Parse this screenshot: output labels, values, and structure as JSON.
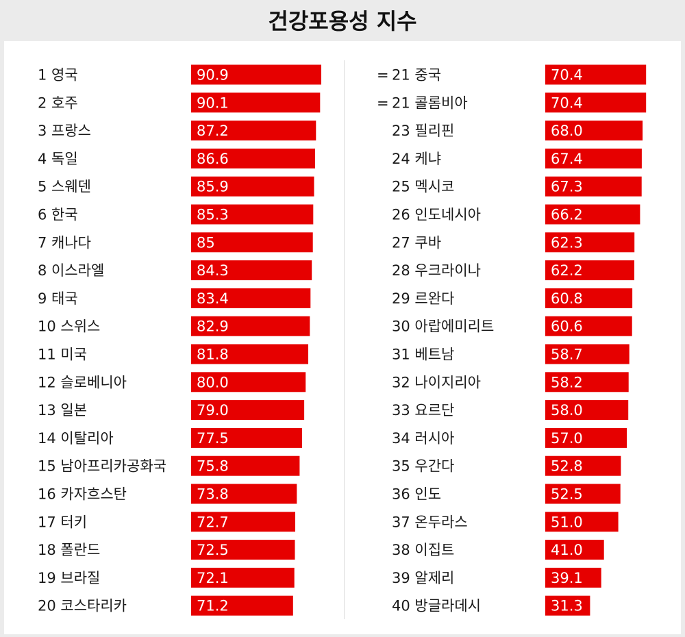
{
  "title": "건강포용성 지수",
  "colors": {
    "bar": "#e60000",
    "background": "#ebebeb",
    "panel": "#ffffff"
  },
  "chart_data": {
    "type": "bar",
    "title": "건강포용성 지수",
    "orientation": "horizontal",
    "grid": false,
    "legend": "none",
    "xlim": [
      0,
      90.9
    ],
    "rows": [
      {
        "rank": "1",
        "tie": "",
        "country": "영국",
        "value": 90.9,
        "label": "90.9"
      },
      {
        "rank": "2",
        "tie": "",
        "country": "호주",
        "value": 90.1,
        "label": "90.1"
      },
      {
        "rank": "3",
        "tie": "",
        "country": "프랑스",
        "value": 87.2,
        "label": "87.2"
      },
      {
        "rank": "4",
        "tie": "",
        "country": "독일",
        "value": 86.6,
        "label": "86.6"
      },
      {
        "rank": "5",
        "tie": "",
        "country": "스웨덴",
        "value": 85.9,
        "label": "85.9"
      },
      {
        "rank": "6",
        "tie": "",
        "country": "한국",
        "value": 85.3,
        "label": "85.3"
      },
      {
        "rank": "7",
        "tie": "",
        "country": "캐나다",
        "value": 85.0,
        "label": "85"
      },
      {
        "rank": "8",
        "tie": "",
        "country": "이스라엘",
        "value": 84.3,
        "label": "84.3"
      },
      {
        "rank": "9",
        "tie": "",
        "country": "태국",
        "value": 83.4,
        "label": "83.4"
      },
      {
        "rank": "10",
        "tie": "",
        "country": "스위스",
        "value": 82.9,
        "label": "82.9"
      },
      {
        "rank": "11",
        "tie": "",
        "country": "미국",
        "value": 81.8,
        "label": "81.8"
      },
      {
        "rank": "12",
        "tie": "",
        "country": "슬로베니아",
        "value": 80.0,
        "label": "80.0"
      },
      {
        "rank": "13",
        "tie": "",
        "country": "일본",
        "value": 79.0,
        "label": "79.0"
      },
      {
        "rank": "14",
        "tie": "",
        "country": "이탈리아",
        "value": 77.5,
        "label": "77.5"
      },
      {
        "rank": "15",
        "tie": "",
        "country": "남아프리카공화국",
        "value": 75.8,
        "label": "75.8"
      },
      {
        "rank": "16",
        "tie": "",
        "country": "카자흐스탄",
        "value": 73.8,
        "label": "73.8"
      },
      {
        "rank": "17",
        "tie": "",
        "country": "터키",
        "value": 72.7,
        "label": "72.7"
      },
      {
        "rank": "18",
        "tie": "",
        "country": "폴란드",
        "value": 72.5,
        "label": "72.5"
      },
      {
        "rank": "19",
        "tie": "",
        "country": "브라질",
        "value": 72.1,
        "label": "72.1"
      },
      {
        "rank": "20",
        "tie": "",
        "country": "코스타리카",
        "value": 71.2,
        "label": "71.2"
      },
      {
        "rank": "21",
        "tie": "=",
        "country": "중국",
        "value": 70.4,
        "label": "70.4"
      },
      {
        "rank": "21",
        "tie": "=",
        "country": "콜롬비아",
        "value": 70.4,
        "label": "70.4"
      },
      {
        "rank": "23",
        "tie": "",
        "country": "필리핀",
        "value": 68.0,
        "label": "68.0"
      },
      {
        "rank": "24",
        "tie": "",
        "country": "케냐",
        "value": 67.4,
        "label": "67.4"
      },
      {
        "rank": "25",
        "tie": "",
        "country": "멕시코",
        "value": 67.3,
        "label": "67.3"
      },
      {
        "rank": "26",
        "tie": "",
        "country": "인도네시아",
        "value": 66.2,
        "label": "66.2"
      },
      {
        "rank": "27",
        "tie": "",
        "country": "쿠바",
        "value": 62.3,
        "label": "62.3"
      },
      {
        "rank": "28",
        "tie": "",
        "country": "우크라이나",
        "value": 62.2,
        "label": "62.2"
      },
      {
        "rank": "29",
        "tie": "",
        "country": "르완다",
        "value": 60.8,
        "label": "60.8"
      },
      {
        "rank": "30",
        "tie": "",
        "country": "아랍에미리트",
        "value": 60.6,
        "label": "60.6"
      },
      {
        "rank": "31",
        "tie": "",
        "country": "베트남",
        "value": 58.7,
        "label": "58.7"
      },
      {
        "rank": "32",
        "tie": "",
        "country": "나이지리아",
        "value": 58.2,
        "label": "58.2"
      },
      {
        "rank": "33",
        "tie": "",
        "country": "요르단",
        "value": 58.0,
        "label": "58.0"
      },
      {
        "rank": "34",
        "tie": "",
        "country": "러시아",
        "value": 57.0,
        "label": "57.0"
      },
      {
        "rank": "35",
        "tie": "",
        "country": "우간다",
        "value": 52.8,
        "label": "52.8"
      },
      {
        "rank": "36",
        "tie": "",
        "country": "인도",
        "value": 52.5,
        "label": "52.5"
      },
      {
        "rank": "37",
        "tie": "",
        "country": "온두라스",
        "value": 51.0,
        "label": "51.0"
      },
      {
        "rank": "38",
        "tie": "",
        "country": "이집트",
        "value": 41.0,
        "label": "41.0"
      },
      {
        "rank": "39",
        "tie": "",
        "country": "알제리",
        "value": 39.1,
        "label": "39.1"
      },
      {
        "rank": "40",
        "tie": "",
        "country": "방글라데시",
        "value": 31.3,
        "label": "31.3"
      }
    ]
  }
}
